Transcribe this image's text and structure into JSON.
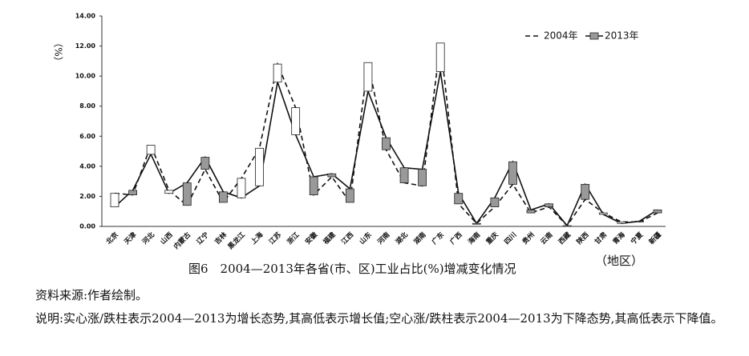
{
  "chart_data": {
    "type": "line",
    "updown_bars": true,
    "ylabel": "（%）",
    "xlabel": "（地区）",
    "title": "图6　2004—2013年各省(市、区)工业占比(%)增减变化情况",
    "source": "资料来源:作者绘制。",
    "note": "说明:实心涨/跌柱表示2004—2013为增长态势,其高低表示增长值;空心涨/跌柱表示2004—2013为下降态势,其高低表示下降值。",
    "categories": [
      "北京",
      "天津",
      "河北",
      "山西",
      "内蒙古",
      "辽宁",
      "吉林",
      "黑龙江",
      "上海",
      "江苏",
      "浙江",
      "安徽",
      "福建",
      "江西",
      "山东",
      "河南",
      "湖北",
      "湖南",
      "广东",
      "广西",
      "海南",
      "重庆",
      "四川",
      "贵州",
      "云南",
      "西藏",
      "陕西",
      "甘肃",
      "青海",
      "宁夏",
      "新疆"
    ],
    "series": [
      {
        "name": "2004年",
        "color": "#111111",
        "line_style": "dashed",
        "values": [
          2.2,
          2.1,
          5.4,
          2.4,
          1.4,
          3.8,
          1.6,
          3.2,
          5.2,
          10.8,
          7.9,
          2.1,
          3.3,
          1.6,
          10.9,
          5.1,
          2.9,
          2.7,
          12.2,
          1.5,
          0.2,
          1.3,
          2.8,
          0.9,
          1.3,
          0.05,
          1.8,
          0.9,
          0.3,
          0.3,
          0.9
        ]
      },
      {
        "name": "2013年",
        "color": "#111111",
        "line_style": "solid",
        "values": [
          1.3,
          2.4,
          4.8,
          2.2,
          2.9,
          4.6,
          2.3,
          1.9,
          2.7,
          9.6,
          6.1,
          3.3,
          3.5,
          2.5,
          9.0,
          5.9,
          3.9,
          3.8,
          10.3,
          2.2,
          0.2,
          1.9,
          4.3,
          1.1,
          1.5,
          0.05,
          2.8,
          0.8,
          0.2,
          0.35,
          1.1
        ]
      }
    ],
    "up_color": "#999999",
    "down_color": "#ffffff",
    "ylim": [
      0,
      14
    ],
    "yticks": [
      {
        "value": 0,
        "label": "0.00"
      },
      {
        "value": 2,
        "label": "2.00"
      },
      {
        "value": 4,
        "label": "4.00"
      },
      {
        "value": 6,
        "label": "6.00"
      },
      {
        "value": 8,
        "label": "8.00"
      },
      {
        "value": 10,
        "label": "10.00"
      },
      {
        "value": 12,
        "label": "12.00"
      },
      {
        "value": 14,
        "label": "14.00"
      }
    ],
    "legend": "top-right"
  }
}
